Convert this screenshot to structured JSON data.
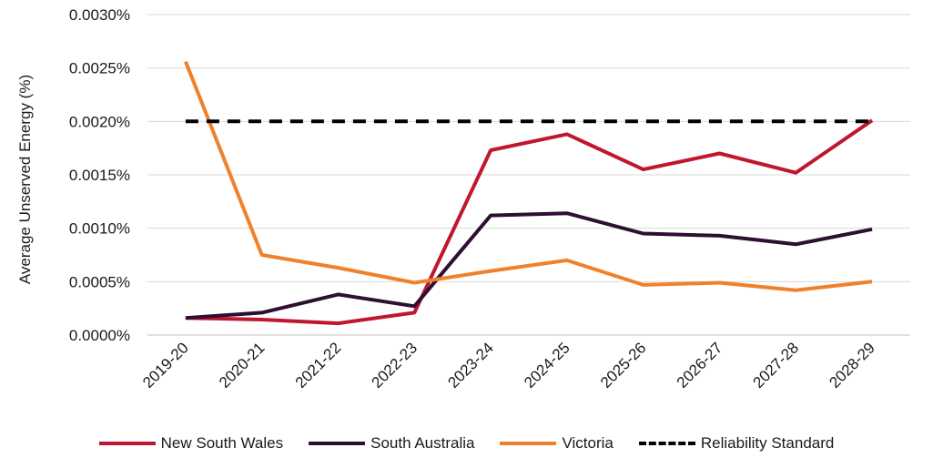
{
  "chart_data": {
    "type": "line",
    "title": "",
    "xlabel": "",
    "ylabel": "Average Unserved Energy (%)",
    "categories": [
      "2019-20",
      "2020-21",
      "2021-22",
      "2022-23",
      "2023-24",
      "2024-25",
      "2025-26",
      "2026-27",
      "2027-28",
      "2028-29"
    ],
    "ylim": [
      0,
      0.003
    ],
    "yticks": [
      0,
      0.0005,
      0.001,
      0.0015,
      0.002,
      0.0025,
      0.003
    ],
    "ytick_labels": [
      "0.0000%",
      "0.0005%",
      "0.0010%",
      "0.0015%",
      "0.0020%",
      "0.0025%",
      "0.0030%"
    ],
    "grid": true,
    "legend_position": "bottom",
    "series": [
      {
        "name": "New South Wales",
        "color": "#c0172f",
        "style": "solid",
        "values": [
          0.00016,
          0.000145,
          0.00011,
          0.00021,
          0.00173,
          0.00188,
          0.00155,
          0.0017,
          0.00152,
          0.00201
        ]
      },
      {
        "name": "South Australia",
        "color": "#2d0f32",
        "style": "solid",
        "values": [
          0.00016,
          0.00021,
          0.00038,
          0.00027,
          0.00112,
          0.00114,
          0.00095,
          0.00093,
          0.00085,
          0.00099
        ]
      },
      {
        "name": "Victoria",
        "color": "#f0812c",
        "style": "solid",
        "values": [
          0.00256,
          0.00075,
          0.00063,
          0.00049,
          0.0006,
          0.0007,
          0.00047,
          0.00049,
          0.00042,
          0.0005
        ]
      },
      {
        "name": "Reliability Standard",
        "color": "#000000",
        "style": "dashed",
        "values": [
          0.002,
          0.002,
          0.002,
          0.002,
          0.002,
          0.002,
          0.002,
          0.002,
          0.002,
          0.002
        ]
      }
    ]
  }
}
